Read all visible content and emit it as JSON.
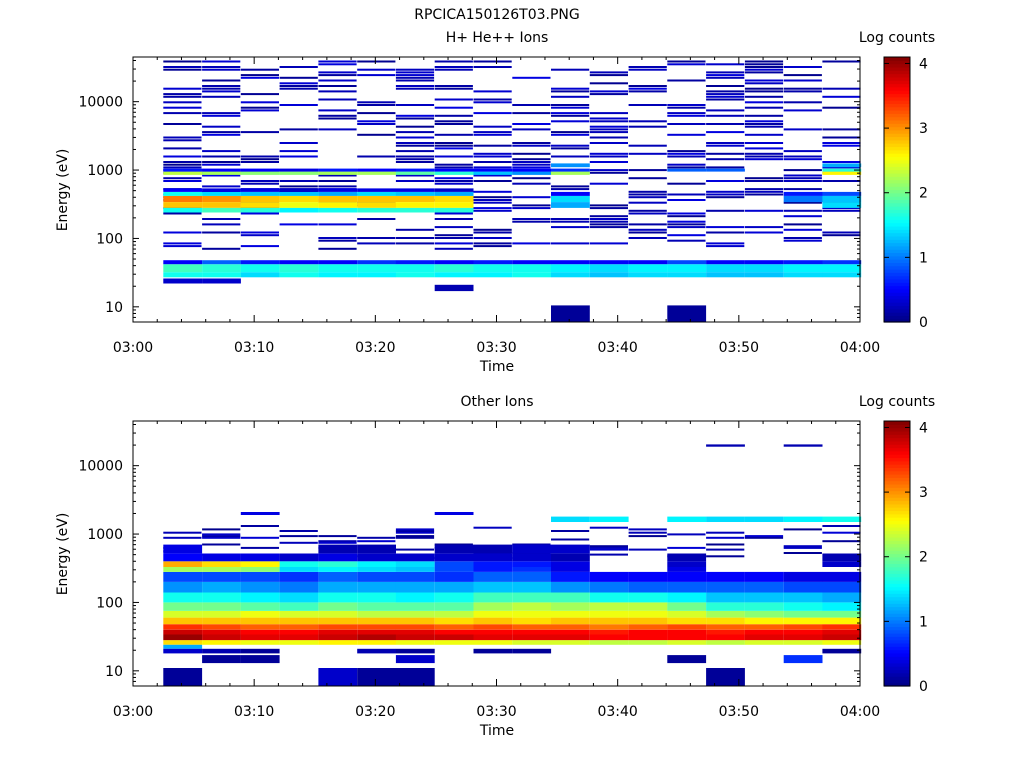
{
  "figure_title": "RPCICA150126T03.PNG",
  "colorbar": {
    "title": "Log counts",
    "ticks": [
      "0",
      "1",
      "2",
      "3",
      "4"
    ],
    "range": [
      0,
      4.1
    ]
  },
  "axes": {
    "ylabel": "Energy (eV)",
    "xlabel": "Time",
    "ytick_labels": [
      "10",
      "100",
      "1000",
      "10000"
    ],
    "xtick_labels": [
      "03:00",
      "03:10",
      "03:20",
      "03:30",
      "03:40",
      "03:50",
      "04:00"
    ]
  },
  "chart_data": [
    {
      "type": "heatmap",
      "title": "H+ He++ Ions",
      "xlabel": "Time",
      "ylabel": "Energy (eV)",
      "x_range": [
        "03:00",
        "04:00"
      ],
      "y_range_eV": [
        6,
        45000
      ],
      "y_scale": "log",
      "colorbar_label": "Log counts",
      "colorbar_range": [
        0,
        4.1
      ],
      "time_bins_start_min": [
        2.5,
        5.7,
        8.9,
        12.1,
        15.3,
        18.5,
        21.7,
        24.9,
        28.1,
        31.3,
        34.5,
        37.7,
        40.9,
        44.1,
        47.3,
        50.5,
        53.7,
        56.9
      ],
      "time_bin_width_min": 3.2,
      "bands": [
        {
          "emin": 32,
          "emax": 42,
          "values": [
            1.8,
            1.7,
            1.6,
            1.7,
            1.6,
            1.6,
            1.6,
            1.7,
            1.6,
            1.6,
            1.5,
            1.4,
            1.5,
            1.5,
            1.4,
            1.4,
            1.5,
            1.5
          ]
        },
        {
          "emin": 27,
          "emax": 32,
          "values": [
            1.6,
            1.6,
            1.4,
            1.6,
            1.5,
            1.5,
            1.6,
            1.5,
            1.5,
            1.6,
            1.4,
            1.3,
            1.4,
            1.4,
            1.3,
            1.3,
            1.4,
            1.4
          ]
        },
        {
          "emin": 42,
          "emax": 48,
          "values": [
            0.5,
            0.9,
            0.6,
            0.5,
            0.5,
            0.7,
            0.6,
            0.5,
            0.6,
            0.5,
            0.5,
            0.5,
            0.5,
            0.8,
            0.5,
            0.5,
            0.6,
            0.7
          ]
        },
        {
          "emin": 22,
          "emax": 26,
          "values": [
            0.3,
            0.3,
            null,
            null,
            null,
            null,
            null,
            null,
            null,
            null,
            null,
            null,
            null,
            null,
            null,
            null,
            null,
            null
          ]
        },
        {
          "emin": 17,
          "emax": 21,
          "values": [
            null,
            null,
            null,
            null,
            null,
            null,
            null,
            0.2,
            null,
            null,
            null,
            null,
            null,
            null,
            null,
            null,
            null,
            null
          ]
        },
        {
          "emin": 6,
          "emax": 10.5,
          "values": [
            null,
            null,
            null,
            null,
            null,
            null,
            null,
            null,
            null,
            null,
            0.1,
            null,
            null,
            0.1,
            null,
            null,
            null,
            null
          ]
        },
        {
          "emin": 340,
          "emax": 420,
          "values": [
            3.1,
            3.0,
            2.8,
            2.7,
            2.8,
            2.8,
            2.8,
            2.7,
            null,
            null,
            1.4,
            null,
            null,
            null,
            null,
            null,
            1.0,
            1.3
          ]
        },
        {
          "emin": 280,
          "emax": 340,
          "values": [
            2.8,
            2.8,
            2.7,
            2.5,
            2.6,
            2.7,
            2.6,
            2.6,
            null,
            null,
            1.2,
            null,
            null,
            null,
            null,
            null,
            null,
            1.4
          ]
        },
        {
          "emin": 240,
          "emax": 280,
          "values": [
            1.6,
            1.8,
            1.7,
            1.5,
            1.6,
            1.7,
            1.7,
            1.7,
            null,
            null,
            null,
            null,
            null,
            null,
            null,
            null,
            null,
            null
          ]
        },
        {
          "emin": 420,
          "emax": 480,
          "values": [
            1.6,
            1.4,
            1.3,
            1.3,
            1.2,
            1.4,
            1.3,
            1.2,
            null,
            null,
            0.5,
            null,
            null,
            null,
            null,
            null,
            0.6,
            0.8
          ]
        },
        {
          "emin": 480,
          "emax": 540,
          "values": [
            0.5,
            0.4,
            0.4,
            0.3,
            0.4,
            0.4,
            0.4,
            0.3,
            null,
            null,
            null,
            null,
            null,
            null,
            null,
            null,
            null,
            null
          ]
        },
        {
          "emin": 850,
          "emax": 950,
          "values": [
            2.3,
            2.2,
            2.1,
            2.1,
            2.2,
            2.2,
            1.9,
            1.7,
            1.3,
            1.1,
            2.2,
            null,
            null,
            null,
            null,
            null,
            null,
            2.6
          ]
        },
        {
          "emin": 950,
          "emax": 1050,
          "values": [
            0.6,
            0.5,
            0.5,
            0.4,
            0.6,
            0.5,
            0.6,
            0.5,
            0.5,
            0.5,
            0.7,
            null,
            null,
            0.9,
            0.9,
            null,
            null,
            1.7
          ]
        },
        {
          "emin": 1100,
          "emax": 1250,
          "values": [
            null,
            null,
            null,
            null,
            null,
            null,
            null,
            null,
            null,
            null,
            1.1,
            null,
            null,
            null,
            null,
            null,
            null,
            1.2
          ]
        }
      ],
      "speckle": {
        "emin": 70,
        "emax": 42000,
        "level_range": [
          0.05,
          0.4
        ]
      }
    },
    {
      "type": "heatmap",
      "title": "Other Ions",
      "xlabel": "Time",
      "ylabel": "Energy (eV)",
      "x_range": [
        "03:00",
        "04:00"
      ],
      "y_range_eV": [
        6,
        45000
      ],
      "y_scale": "log",
      "colorbar_label": "Log counts",
      "colorbar_range": [
        0,
        4.1
      ],
      "time_bins_start_min": [
        2.5,
        5.7,
        8.9,
        12.1,
        15.3,
        18.5,
        21.7,
        24.9,
        28.1,
        31.3,
        34.5,
        37.7,
        40.9,
        44.1,
        47.3,
        50.5,
        53.7,
        56.9
      ],
      "time_bin_width_min": 3.2,
      "bands": [
        {
          "emin": 28,
          "emax": 34,
          "values": [
            4.0,
            3.8,
            3.7,
            3.7,
            3.8,
            3.9,
            3.8,
            3.8,
            3.7,
            3.7,
            3.7,
            3.6,
            3.6,
            3.6,
            3.6,
            3.7,
            3.7,
            3.8
          ]
        },
        {
          "emin": 34,
          "emax": 40,
          "values": [
            3.8,
            3.7,
            3.6,
            3.6,
            3.7,
            3.7,
            3.7,
            3.6,
            3.6,
            3.6,
            3.6,
            3.5,
            3.6,
            3.6,
            3.5,
            3.6,
            3.6,
            3.7
          ]
        },
        {
          "emin": 40,
          "emax": 48,
          "values": [
            3.4,
            3.3,
            3.2,
            3.2,
            3.3,
            3.3,
            3.3,
            3.2,
            3.3,
            3.2,
            3.2,
            3.1,
            3.2,
            3.3,
            3.2,
            3.2,
            3.3,
            3.4
          ]
        },
        {
          "emin": 24,
          "emax": 28,
          "values": [
            2.7,
            2.6,
            2.5,
            2.5,
            2.6,
            2.6,
            2.5,
            2.5,
            2.5,
            2.4,
            2.4,
            2.3,
            2.3,
            2.4,
            2.3,
            2.4,
            2.4,
            2.5
          ]
        },
        {
          "emin": 21,
          "emax": 24,
          "values": [
            1.2,
            null,
            null,
            null,
            null,
            null,
            null,
            null,
            null,
            null,
            null,
            null,
            null,
            null,
            null,
            null,
            null,
            null
          ]
        },
        {
          "emin": 48,
          "emax": 60,
          "values": [
            2.8,
            2.8,
            2.8,
            2.8,
            2.8,
            2.8,
            2.8,
            2.7,
            2.8,
            2.7,
            2.8,
            2.8,
            2.8,
            2.7,
            2.7,
            2.6,
            2.6,
            2.6
          ]
        },
        {
          "emin": 60,
          "emax": 75,
          "values": [
            2.4,
            2.4,
            2.5,
            2.4,
            2.4,
            2.3,
            2.3,
            2.3,
            2.5,
            2.5,
            2.5,
            2.5,
            2.5,
            2.4,
            2.2,
            2.1,
            2.0,
            2.0
          ]
        },
        {
          "emin": 75,
          "emax": 100,
          "values": [
            2.0,
            2.0,
            1.9,
            1.8,
            2.0,
            1.9,
            1.9,
            1.9,
            2.2,
            2.3,
            2.2,
            2.3,
            2.3,
            2.0,
            1.7,
            1.7,
            1.6,
            1.5
          ]
        },
        {
          "emin": 100,
          "emax": 140,
          "values": [
            1.6,
            1.6,
            1.5,
            1.4,
            1.6,
            1.6,
            1.5,
            1.6,
            1.8,
            1.8,
            1.8,
            1.6,
            1.6,
            1.5,
            1.3,
            1.3,
            1.3,
            1.2
          ]
        },
        {
          "emin": 140,
          "emax": 200,
          "values": [
            1.1,
            1.2,
            1.1,
            1.0,
            1.2,
            1.2,
            1.2,
            1.2,
            1.3,
            1.3,
            1.1,
            1.0,
            0.9,
            0.9,
            0.9,
            0.9,
            0.8,
            0.8
          ]
        },
        {
          "emin": 200,
          "emax": 280,
          "values": [
            0.8,
            0.8,
            0.8,
            0.7,
            0.9,
            0.8,
            0.8,
            0.7,
            0.9,
            0.9,
            0.6,
            0.5,
            0.5,
            0.5,
            0.5,
            0.5,
            0.4,
            0.4
          ]
        },
        {
          "emin": 280,
          "emax": 330,
          "values": [
            2.2,
            2.2,
            2.1,
            1.4,
            1.5,
            1.4,
            1.3,
            0.8,
            0.6,
            0.7,
            0.4,
            null,
            null,
            0.4,
            null,
            null,
            null,
            null
          ]
        },
        {
          "emin": 330,
          "emax": 400,
          "values": [
            2.9,
            2.7,
            2.6,
            1.6,
            1.7,
            1.5,
            1.4,
            0.8,
            0.6,
            0.6,
            0.4,
            null,
            null,
            0.3,
            null,
            null,
            null,
            0.3
          ]
        },
        {
          "emin": 400,
          "emax": 520,
          "values": [
            0.5,
            0.4,
            0.4,
            0.3,
            0.4,
            0.3,
            0.3,
            0.3,
            0.3,
            0.3,
            0.2,
            null,
            null,
            0.2,
            null,
            null,
            null,
            0.2
          ]
        },
        {
          "emin": 520,
          "emax": 700,
          "values": [
            0.4,
            null,
            null,
            null,
            0.2,
            0.2,
            null,
            0.2,
            0.2,
            0.3,
            0.3,
            null,
            null,
            null,
            null,
            null,
            null,
            null
          ]
        },
        {
          "emin": 1500,
          "emax": 1800,
          "values": [
            null,
            null,
            null,
            null,
            null,
            null,
            null,
            null,
            null,
            null,
            1.4,
            1.5,
            null,
            1.5,
            1.4,
            1.4,
            1.5,
            1.6
          ]
        },
        {
          "emin": 1900,
          "emax": 2100,
          "values": [
            null,
            null,
            0.4,
            null,
            null,
            null,
            null,
            0.4,
            null,
            null,
            null,
            null,
            null,
            null,
            null,
            null,
            null,
            null
          ]
        },
        {
          "emin": 18,
          "emax": 21,
          "values": [
            0.3,
            0.2,
            0.1,
            null,
            null,
            0.2,
            0.1,
            null,
            0.1,
            0.1,
            null,
            null,
            null,
            null,
            null,
            null,
            null,
            0.1
          ]
        },
        {
          "emin": 13,
          "emax": 17,
          "values": [
            null,
            0.1,
            0.1,
            null,
            null,
            null,
            0.3,
            null,
            null,
            null,
            null,
            null,
            null,
            0.1,
            null,
            null,
            0.7,
            null
          ]
        },
        {
          "emin": 6,
          "emax": 11,
          "values": [
            0.1,
            null,
            null,
            null,
            0.3,
            0.1,
            0.1,
            null,
            null,
            null,
            null,
            null,
            null,
            null,
            0.1,
            null,
            null,
            null
          ]
        },
        {
          "emin": 19000,
          "emax": 20500,
          "values": [
            null,
            null,
            null,
            null,
            null,
            null,
            null,
            null,
            null,
            null,
            null,
            null,
            null,
            null,
            0.2,
            null,
            0.2,
            null
          ]
        }
      ],
      "speckle": {
        "emin": 450,
        "emax": 1400,
        "level_range": [
          0.05,
          0.35
        ]
      }
    }
  ]
}
